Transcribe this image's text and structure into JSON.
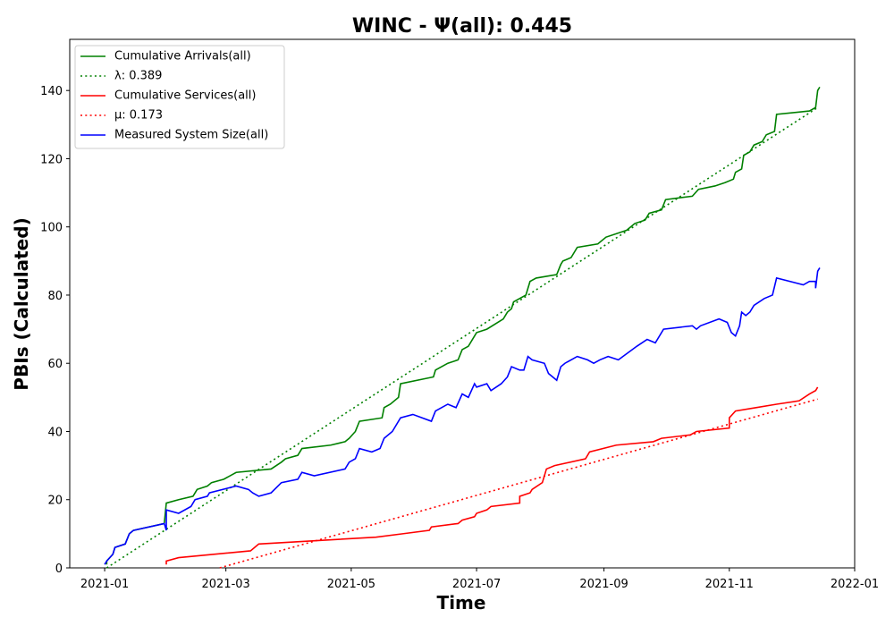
{
  "chart_data": {
    "type": "line",
    "title": "WINC -  Ψ(all): 0.445",
    "xlabel": "Time",
    "ylabel": "PBIs (Calculated)",
    "xlim": [
      "2020-12-15",
      "2022-01-01"
    ],
    "ylim": [
      0,
      155
    ],
    "xticks": [
      {
        "value": "2021-01-01",
        "label": "2021-01"
      },
      {
        "value": "2021-03-01",
        "label": "2021-03"
      },
      {
        "value": "2021-05-01",
        "label": "2021-05"
      },
      {
        "value": "2021-07-01",
        "label": "2021-07"
      },
      {
        "value": "2021-09-01",
        "label": "2021-09"
      },
      {
        "value": "2021-11-01",
        "label": "2021-11"
      },
      {
        "value": "2022-01-01",
        "label": "2022-01"
      }
    ],
    "yticks": [
      0,
      20,
      40,
      60,
      80,
      100,
      120,
      140
    ],
    "grid": false,
    "legend": "upper left",
    "series": [
      {
        "name": "Cumulative Arrivals(all)",
        "color": "#008000",
        "dash": "solid",
        "x": [
          "2021-01-02",
          "2021-01-02",
          "2021-01-05",
          "2021-01-06",
          "2021-01-11",
          "2021-01-13",
          "2021-01-15",
          "2021-01-30",
          "2021-01-31",
          "2021-02-06",
          "2021-02-13",
          "2021-02-15",
          "2021-02-20",
          "2021-02-22",
          "2021-02-28",
          "2021-03-06",
          "2021-03-23",
          "2021-03-28",
          "2021-03-30",
          "2021-04-05",
          "2021-04-07",
          "2021-04-21",
          "2021-04-28",
          "2021-04-30",
          "2021-05-03",
          "2021-05-05",
          "2021-05-16",
          "2021-05-17",
          "2021-05-20",
          "2021-05-24",
          "2021-05-25",
          "2021-06-10",
          "2021-06-11",
          "2021-06-17",
          "2021-06-22",
          "2021-06-24",
          "2021-06-27",
          "2021-07-01",
          "2021-07-06",
          "2021-07-14",
          "2021-07-16",
          "2021-07-18",
          "2021-07-19",
          "2021-07-25",
          "2021-07-27",
          "2021-07-30",
          "2021-08-09",
          "2021-08-11",
          "2021-08-12",
          "2021-08-16",
          "2021-08-19",
          "2021-08-29",
          "2021-09-02",
          "2021-09-12",
          "2021-09-16",
          "2021-09-21",
          "2021-09-23",
          "2021-09-29",
          "2021-10-01",
          "2021-10-14",
          "2021-10-17",
          "2021-10-25",
          "2021-10-30",
          "2021-11-03",
          "2021-11-04",
          "2021-11-07",
          "2021-11-08",
          "2021-11-11",
          "2021-11-13",
          "2021-11-17",
          "2021-11-19",
          "2021-11-23",
          "2021-11-24",
          "2021-12-10",
          "2021-12-13",
          "2021-12-14",
          "2021-12-15"
        ],
        "values": [
          1,
          2,
          4,
          6,
          7,
          10,
          11,
          13,
          19,
          20,
          21,
          23,
          24,
          25,
          26,
          28,
          29,
          31,
          32,
          33,
          35,
          36,
          37,
          38,
          40,
          43,
          44,
          47,
          48,
          50,
          54,
          56,
          58,
          60,
          61,
          64,
          65,
          69,
          70,
          73,
          75,
          76,
          78,
          80,
          84,
          85,
          86,
          89,
          90,
          91,
          94,
          95,
          97,
          99,
          101,
          102,
          104,
          105,
          108,
          109,
          111,
          112,
          113,
          114,
          116,
          117,
          121,
          122,
          124,
          125,
          127,
          128,
          133,
          134,
          135,
          140,
          141
        ]
      },
      {
        "name": "λ: 0.389",
        "color": "#008000",
        "dash": "dotted",
        "x": [
          "2021-01-02",
          "2021-12-14"
        ],
        "values": [
          0,
          135
        ]
      },
      {
        "name": "Cumulative Services(all)",
        "color": "#ff0000",
        "dash": "solid",
        "x": [
          "2021-01-31",
          "2021-01-31",
          "2021-02-06",
          "2021-03-13",
          "2021-03-15",
          "2021-03-17",
          "2021-05-13",
          "2021-05-26",
          "2021-06-08",
          "2021-06-09",
          "2021-06-22",
          "2021-06-24",
          "2021-06-30",
          "2021-07-01",
          "2021-07-06",
          "2021-07-08",
          "2021-07-22",
          "2021-07-22",
          "2021-07-27",
          "2021-07-28",
          "2021-08-02",
          "2021-08-04",
          "2021-08-08",
          "2021-08-23",
          "2021-08-25",
          "2021-09-07",
          "2021-09-25",
          "2021-09-29",
          "2021-10-13",
          "2021-10-16",
          "2021-11-01",
          "2021-11-01",
          "2021-11-04",
          "2021-11-14",
          "2021-11-24",
          "2021-12-05",
          "2021-12-10",
          "2021-12-13",
          "2021-12-14"
        ],
        "values": [
          1,
          2,
          3,
          5,
          6,
          7,
          9,
          10,
          11,
          12,
          13,
          14,
          15,
          16,
          17,
          18,
          19,
          21,
          22,
          23,
          25,
          29,
          30,
          32,
          34,
          36,
          37,
          38,
          39,
          40,
          41,
          44,
          46,
          47,
          48,
          49,
          51,
          52,
          53
        ]
      },
      {
        "name": "μ: 0.173",
        "color": "#ff0000",
        "dash": "dotted",
        "x": [
          "2021-02-26",
          "2021-12-14"
        ],
        "values": [
          0,
          49.5
        ]
      },
      {
        "name": "Measured System Size(all)",
        "color": "#0000ff",
        "dash": "solid",
        "x": [
          "2021-01-01",
          "2021-01-02",
          "2021-01-05",
          "2021-01-06",
          "2021-01-11",
          "2021-01-13",
          "2021-01-15",
          "2021-01-30",
          "2021-01-31",
          "2021-01-31",
          "2021-02-06",
          "2021-02-12",
          "2021-02-14",
          "2021-02-20",
          "2021-02-21",
          "2021-03-06",
          "2021-03-12",
          "2021-03-14",
          "2021-03-17",
          "2021-03-23",
          "2021-03-28",
          "2021-04-05",
          "2021-04-07",
          "2021-04-13",
          "2021-04-28",
          "2021-04-30",
          "2021-05-03",
          "2021-05-05",
          "2021-05-11",
          "2021-05-15",
          "2021-05-17",
          "2021-05-21",
          "2021-05-25",
          "2021-05-31",
          "2021-06-09",
          "2021-06-11",
          "2021-06-17",
          "2021-06-21",
          "2021-06-24",
          "2021-06-27",
          "2021-06-30",
          "2021-07-01",
          "2021-07-06",
          "2021-07-08",
          "2021-07-13",
          "2021-07-16",
          "2021-07-18",
          "2021-07-22",
          "2021-07-24",
          "2021-07-26",
          "2021-07-28",
          "2021-08-03",
          "2021-08-05",
          "2021-08-09",
          "2021-08-11",
          "2021-08-13",
          "2021-08-19",
          "2021-08-24",
          "2021-08-27",
          "2021-08-30",
          "2021-09-03",
          "2021-09-08",
          "2021-09-17",
          "2021-09-22",
          "2021-09-26",
          "2021-09-30",
          "2021-10-14",
          "2021-10-16",
          "2021-10-18",
          "2021-10-27",
          "2021-10-31",
          "2021-11-02",
          "2021-11-04",
          "2021-11-06",
          "2021-11-07",
          "2021-11-09",
          "2021-11-11",
          "2021-11-13",
          "2021-11-18",
          "2021-11-22",
          "2021-11-24",
          "2021-12-07",
          "2021-12-10",
          "2021-12-13",
          "2021-12-13",
          "2021-12-14",
          "2021-12-15"
        ],
        "values": [
          1,
          2,
          4,
          6,
          7,
          10,
          11,
          13,
          11,
          17,
          16,
          18,
          20,
          21,
          22,
          24,
          23,
          22,
          21,
          22,
          25,
          26,
          28,
          27,
          29,
          31,
          32,
          35,
          34,
          35,
          38,
          40,
          44,
          45,
          43,
          46,
          48,
          47,
          51,
          50,
          54,
          53,
          54,
          52,
          54,
          56,
          59,
          58,
          58,
          62,
          61,
          60,
          57,
          55,
          59,
          60,
          62,
          61,
          60,
          61,
          62,
          61,
          65,
          67,
          66,
          70,
          71,
          70,
          71,
          73,
          72,
          69,
          68,
          71,
          75,
          74,
          75,
          77,
          79,
          80,
          85,
          83,
          84,
          84,
          82,
          87,
          88
        ]
      }
    ]
  }
}
